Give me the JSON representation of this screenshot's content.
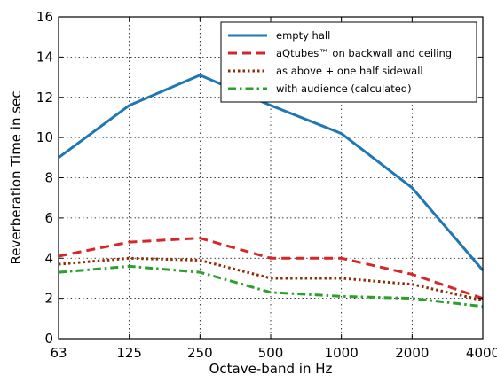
{
  "chart_data": {
    "type": "line",
    "title": "",
    "xlabel": "Octave-band in Hz",
    "ylabel": "Reverberation Time in sec",
    "categories": [
      "63",
      "125",
      "250",
      "500",
      "1000",
      "2000",
      "4000"
    ],
    "ylim": [
      0,
      16
    ],
    "yticks": [
      0,
      2,
      4,
      6,
      8,
      10,
      12,
      14,
      16
    ],
    "grid": true,
    "grid_style": "dotted",
    "legend_position": "top-right",
    "series": [
      {
        "name": "empty hall",
        "values": [
          9.0,
          11.6,
          13.1,
          11.6,
          10.2,
          7.5,
          3.4
        ],
        "color": "#1f77b4",
        "style": "solid"
      },
      {
        "name": "aQtubes™ on backwall and ceiling",
        "values": [
          4.1,
          4.8,
          5.0,
          4.0,
          4.0,
          3.2,
          2.0
        ],
        "color": "#d62728",
        "style": "dashed"
      },
      {
        "name": "as above + one half sidewall",
        "values": [
          3.7,
          4.0,
          3.9,
          3.0,
          3.0,
          2.7,
          1.9
        ],
        "color": "#8c2d04",
        "style": "dotted"
      },
      {
        "name": "with audience (calculated)",
        "values": [
          3.3,
          3.6,
          3.3,
          2.3,
          2.1,
          2.0,
          1.6
        ],
        "color": "#2ca02c",
        "style": "dashdot"
      }
    ]
  }
}
